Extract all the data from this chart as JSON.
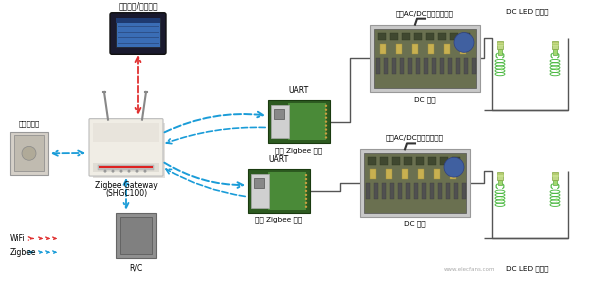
{
  "labels": {
    "tablet": "平板电脑/智能手机",
    "pir": "人感传感器",
    "gateway_name": "Zigbee Gateway",
    "gateway_model": "(SHGC100)",
    "rc": "R/C",
    "wifi": "WiFi",
    "zigbee_leg": "Zigbee",
    "uart1": "UART",
    "uart2": "UART",
    "zigbee_mod1": "村田 Zigbee 模块",
    "zigbee_mod2": "村田 Zigbee 模块",
    "acdc1": "村田AC/DC电源驱动模块",
    "acdc2": "村田AC/DC电源驱动模块",
    "dc_power1": "DC 供电",
    "dc_power2": "DC 供电",
    "led1": "DC LED 球泡灯",
    "led2": "DC LED 球泡灯"
  },
  "watermark": "www.elecfans.com",
  "colors": {
    "bg": "#ffffff",
    "blue_arrow": "#1a9cd8",
    "red_arrow": "#e03030",
    "gray_arrow": "#888888",
    "line": "#555555",
    "router_body": "#f0ede5",
    "router_shadow": "#d0cdc5",
    "pir_body": "#c8c8c8",
    "rc_body": "#909090",
    "tablet_frame": "#1a1a2e",
    "tablet_screen": "#4a7fcb",
    "zm_dark": "#3a5a30",
    "zm_light": "#6aaa60",
    "acdc_body": "#b0a898",
    "acdc_inner": "#888070",
    "led_green": "#5dc850",
    "led_mid": "#3a9030",
    "led_base": "#c8b870"
  }
}
